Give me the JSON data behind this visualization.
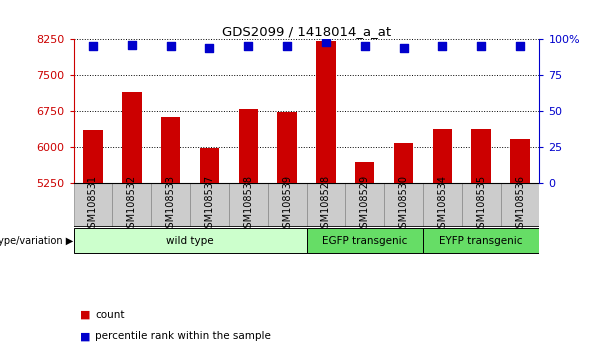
{
  "title": "GDS2099 / 1418014_a_at",
  "samples": [
    "GSM108531",
    "GSM108532",
    "GSM108533",
    "GSM108537",
    "GSM108538",
    "GSM108539",
    "GSM108528",
    "GSM108529",
    "GSM108530",
    "GSM108534",
    "GSM108535",
    "GSM108536"
  ],
  "counts": [
    6350,
    7150,
    6620,
    5980,
    6800,
    6720,
    8200,
    5680,
    6080,
    6370,
    6370,
    6170
  ],
  "percentiles": [
    95,
    96,
    95,
    94,
    95,
    95,
    98,
    95,
    94,
    95,
    95,
    95
  ],
  "bar_color": "#cc0000",
  "dot_color": "#0000cc",
  "ylim_left": [
    5250,
    8250
  ],
  "yticks_left": [
    5250,
    6000,
    6750,
    7500,
    8250
  ],
  "ylim_right": [
    0,
    100
  ],
  "yticks_right": [
    0,
    25,
    50,
    75,
    100
  ],
  "yticklabels_right": [
    "0",
    "25",
    "50",
    "75",
    "100%"
  ],
  "groups": [
    {
      "label": "wild type",
      "start": 0,
      "end": 6,
      "color": "#ccffcc"
    },
    {
      "label": "EGFP transgenic",
      "start": 6,
      "end": 9,
      "color": "#66dd66"
    },
    {
      "label": "EYFP transgenic",
      "start": 9,
      "end": 12,
      "color": "#66dd66"
    }
  ],
  "group_label": "genotype/variation",
  "legend_count_label": "count",
  "legend_percentile_label": "percentile rank within the sample",
  "grid_color": "#000000",
  "tick_color_left": "#cc0000",
  "tick_color_right": "#0000cc",
  "background_color": "#ffffff",
  "bar_width": 0.5,
  "dot_size": 40,
  "dot_marker": "s",
  "xtick_bg_color": "#cccccc",
  "plot_bg_color": "#ffffff"
}
